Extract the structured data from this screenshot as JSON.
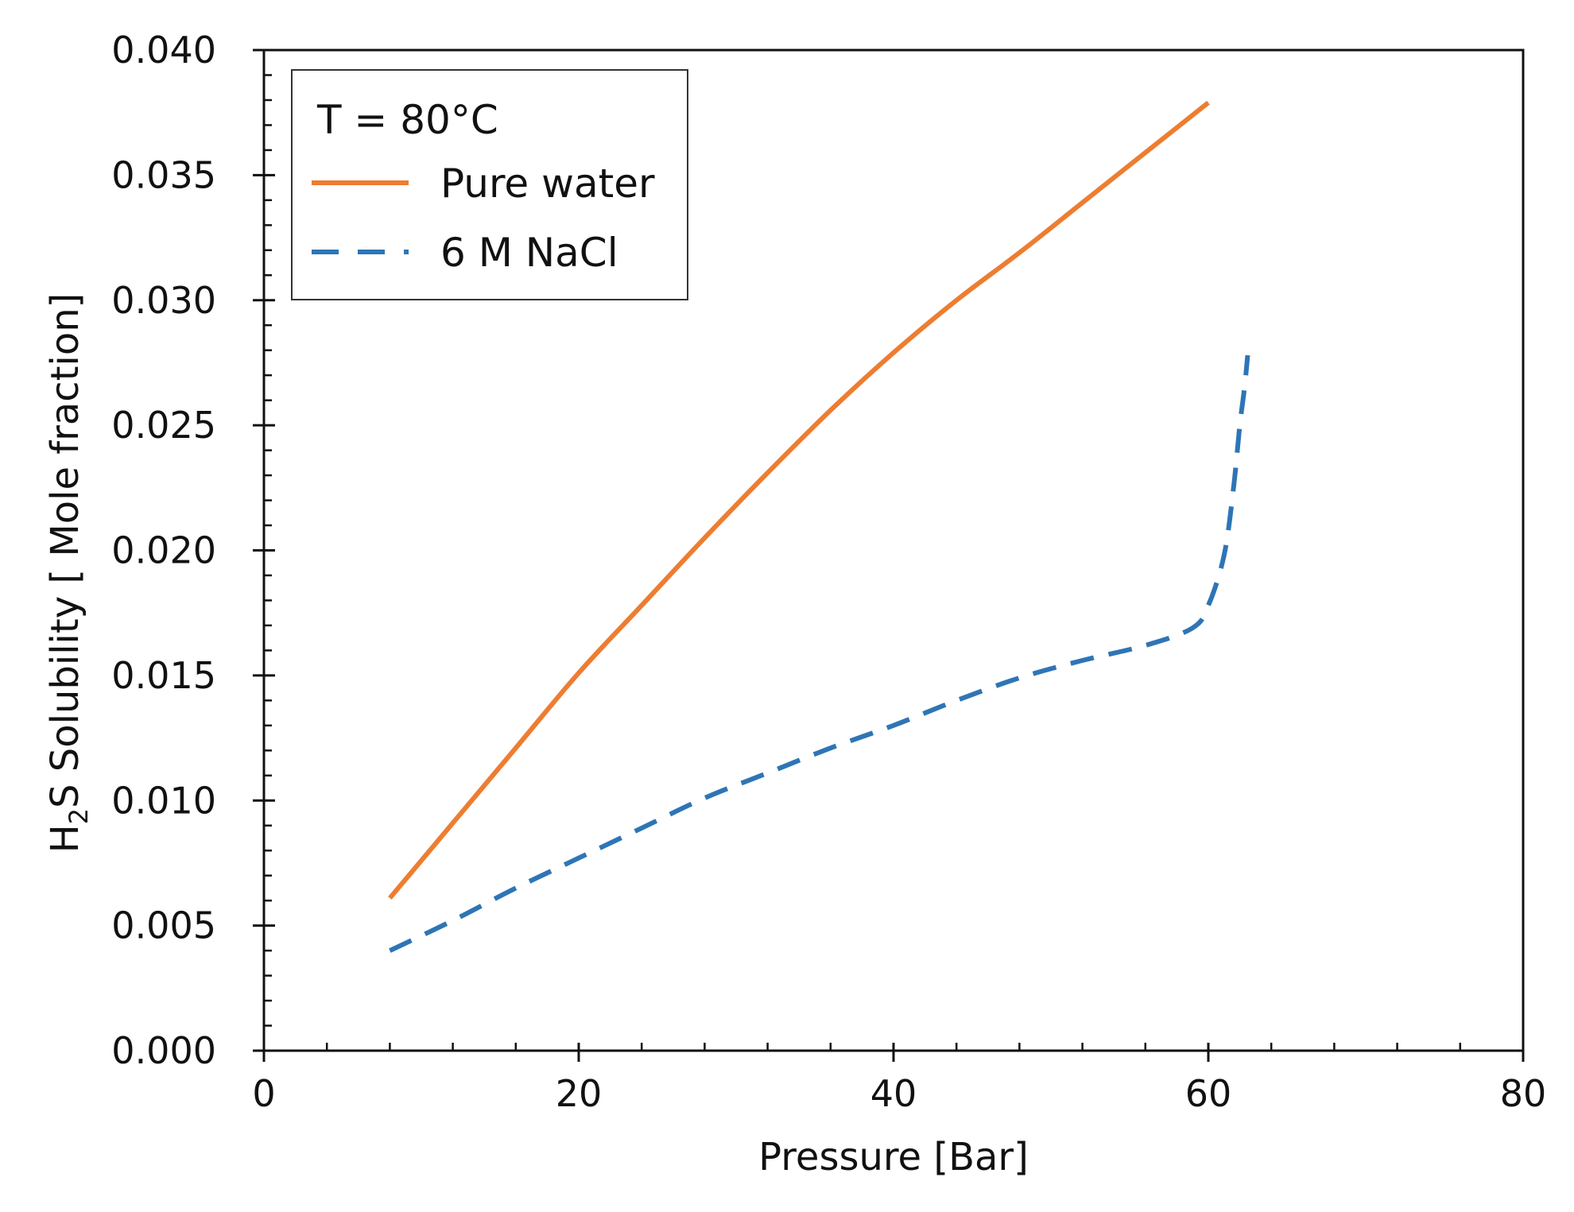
{
  "chart_data": {
    "type": "line",
    "xlabel": "Pressure [Bar]",
    "ylabel": {
      "prefix": "H",
      "subscript": "2",
      "suffix": "S Solubility [ Mole fraction]"
    },
    "xlim": [
      0,
      80
    ],
    "ylim": [
      0,
      0.04
    ],
    "x_ticks": [
      0,
      20,
      40,
      60,
      80
    ],
    "x_tick_labels": [
      "0",
      "20",
      "40",
      "60",
      "80"
    ],
    "x_minor_step": 4,
    "y_ticks": [
      0,
      0.005,
      0.01,
      0.015,
      0.02,
      0.025,
      0.03,
      0.035,
      0.04
    ],
    "y_tick_labels": [
      "0.000",
      "0.005",
      "0.010",
      "0.015",
      "0.020",
      "0.025",
      "0.030",
      "0.035",
      "0.040"
    ],
    "y_minor_step": 0.001,
    "grid": false,
    "legend": {
      "position": "top-left",
      "title": "T = 80°C",
      "entries": [
        "Pure water",
        "6 M NaCl"
      ]
    },
    "series": [
      {
        "name": "Pure water",
        "color": "#ED7D31",
        "dash": "solid",
        "x": [
          8,
          12,
          16,
          20,
          24,
          28,
          32,
          36,
          40,
          44,
          48,
          52,
          56,
          60
        ],
        "y": [
          0.0061,
          0.0091,
          0.0121,
          0.0151,
          0.0178,
          0.0205,
          0.0231,
          0.0256,
          0.0279,
          0.03,
          0.0319,
          0.0339,
          0.0359,
          0.0379
        ]
      },
      {
        "name": "6 M NaCl",
        "color": "#2E75B6",
        "dash": "dashed",
        "x": [
          8,
          12,
          16,
          20,
          24,
          28,
          32,
          36,
          40,
          44,
          48,
          52,
          56,
          59,
          60,
          61,
          61.6,
          62,
          62.3,
          62.5
        ],
        "y": [
          0.004,
          0.0052,
          0.0065,
          0.0077,
          0.0089,
          0.0101,
          0.0111,
          0.0121,
          0.013,
          0.014,
          0.0149,
          0.0156,
          0.0162,
          0.0169,
          0.0178,
          0.0198,
          0.0225,
          0.025,
          0.0265,
          0.0278
        ]
      }
    ]
  }
}
